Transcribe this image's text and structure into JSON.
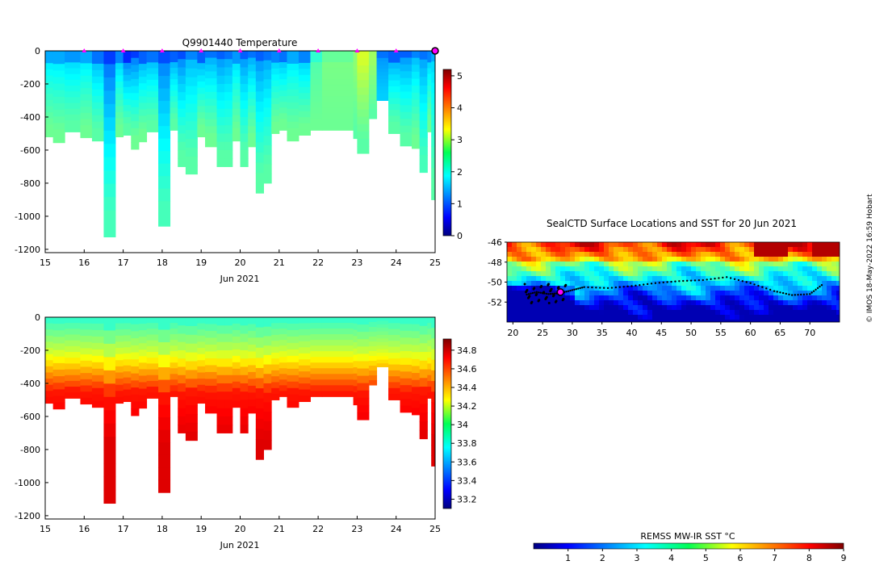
{
  "chart_data": [
    {
      "type": "heatmap",
      "id": "temperature",
      "title": "Q9901440  Temperature",
      "xlabel": "Jun 2021",
      "ylabel": "",
      "xlim": [
        15,
        25
      ],
      "ylim": [
        -1220,
        0
      ],
      "x_ticks": [
        "15",
        "16",
        "17",
        "18",
        "19",
        "20",
        "21",
        "22",
        "23",
        "24",
        "25"
      ],
      "y_ticks": [
        "0",
        "-200",
        "-400",
        "-600",
        "-800",
        "-1000",
        "-1200"
      ],
      "colorbar": {
        "min": 0,
        "max": 5.2,
        "ticks": [
          "0",
          "1",
          "2",
          "3",
          "4",
          "5"
        ],
        "colormap": "jet"
      },
      "surface_markers_day": [
        16,
        17,
        18,
        19,
        20,
        21,
        22,
        23,
        24
      ],
      "current_marker_day": 25,
      "profiles": [
        {
          "day": 15.0,
          "depth": 520,
          "tsurf": 1.6,
          "tdeep": 2.5
        },
        {
          "day": 15.2,
          "depth": 555,
          "tsurf": 1.6,
          "tdeep": 2.5
        },
        {
          "day": 15.5,
          "depth": 490,
          "tsurf": 1.5,
          "tdeep": 2.4
        },
        {
          "day": 15.9,
          "depth": 525,
          "tsurf": 1.6,
          "tdeep": 2.5
        },
        {
          "day": 16.2,
          "depth": 545,
          "tsurf": 1.3,
          "tdeep": 2.4
        },
        {
          "day": 16.5,
          "depth": 1125,
          "tsurf": 1.0,
          "tdeep": 2.3
        },
        {
          "day": 16.8,
          "depth": 520,
          "tsurf": 1.4,
          "tdeep": 2.5
        },
        {
          "day": 17.0,
          "depth": 510,
          "tsurf": 0.9,
          "tdeep": 2.4
        },
        {
          "day": 17.2,
          "depth": 595,
          "tsurf": 1.0,
          "tdeep": 2.5
        },
        {
          "day": 17.4,
          "depth": 550,
          "tsurf": 1.2,
          "tdeep": 2.5
        },
        {
          "day": 17.6,
          "depth": 490,
          "tsurf": 1.3,
          "tdeep": 2.4
        },
        {
          "day": 17.9,
          "depth": 1060,
          "tsurf": 1.1,
          "tdeep": 2.3
        },
        {
          "day": 18.2,
          "depth": 480,
          "tsurf": 1.2,
          "tdeep": 2.4
        },
        {
          "day": 18.4,
          "depth": 700,
          "tsurf": 1.1,
          "tdeep": 2.4
        },
        {
          "day": 18.6,
          "depth": 745,
          "tsurf": 1.4,
          "tdeep": 2.4
        },
        {
          "day": 18.9,
          "depth": 520,
          "tsurf": 1.2,
          "tdeep": 2.5
        },
        {
          "day": 19.1,
          "depth": 580,
          "tsurf": 1.3,
          "tdeep": 2.5
        },
        {
          "day": 19.4,
          "depth": 700,
          "tsurf": 1.2,
          "tdeep": 2.4
        },
        {
          "day": 19.6,
          "depth": 700,
          "tsurf": 1.3,
          "tdeep": 2.4
        },
        {
          "day": 19.8,
          "depth": 545,
          "tsurf": 1.5,
          "tdeep": 2.5
        },
        {
          "day": 20.0,
          "depth": 700,
          "tsurf": 1.2,
          "tdeep": 2.4
        },
        {
          "day": 20.2,
          "depth": 580,
          "tsurf": 1.3,
          "tdeep": 2.5
        },
        {
          "day": 20.4,
          "depth": 860,
          "tsurf": 1.2,
          "tdeep": 2.4
        },
        {
          "day": 20.6,
          "depth": 800,
          "tsurf": 1.3,
          "tdeep": 2.4
        },
        {
          "day": 20.8,
          "depth": 500,
          "tsurf": 1.4,
          "tdeep": 2.5
        },
        {
          "day": 21.0,
          "depth": 480,
          "tsurf": 1.3,
          "tdeep": 2.5
        },
        {
          "day": 21.2,
          "depth": 545,
          "tsurf": 1.6,
          "tdeep": 2.5
        },
        {
          "day": 21.5,
          "depth": 510,
          "tsurf": 1.4,
          "tdeep": 2.5
        },
        {
          "day": 21.8,
          "depth": 480,
          "tsurf": 2.3,
          "tdeep": 2.5
        },
        {
          "day": 22.1,
          "depth": 480,
          "tsurf": 2.6,
          "tdeep": 2.5
        },
        {
          "day": 22.9,
          "depth": 530,
          "tsurf": 2.8,
          "tdeep": 2.4
        },
        {
          "day": 23.0,
          "depth": 620,
          "tsurf": 3.2,
          "tdeep": 2.4
        },
        {
          "day": 23.3,
          "depth": 410,
          "tsurf": 2.9,
          "tdeep": 2.4
        },
        {
          "day": 23.5,
          "depth": 300,
          "tsurf": 1.3,
          "tdeep": 1.7
        },
        {
          "day": 23.8,
          "depth": 500,
          "tsurf": 1.2,
          "tdeep": 2.4
        },
        {
          "day": 24.1,
          "depth": 575,
          "tsurf": 1.2,
          "tdeep": 2.4
        },
        {
          "day": 24.4,
          "depth": 590,
          "tsurf": 1.4,
          "tdeep": 2.5
        },
        {
          "day": 24.6,
          "depth": 735,
          "tsurf": 1.3,
          "tdeep": 2.3
        },
        {
          "day": 24.8,
          "depth": 490,
          "tsurf": 1.4,
          "tdeep": 2.5
        },
        {
          "day": 24.9,
          "depth": 900,
          "tsurf": 1.6,
          "tdeep": 2.4
        },
        {
          "day": 25.0,
          "depth": 700,
          "tsurf": 1.8,
          "tdeep": 2.4
        }
      ]
    },
    {
      "type": "heatmap",
      "id": "salinity",
      "title": "",
      "xlabel": "Jun 2021",
      "ylabel": "",
      "xlim": [
        15,
        25
      ],
      "ylim": [
        -1220,
        0
      ],
      "x_ticks": [
        "15",
        "16",
        "17",
        "18",
        "19",
        "20",
        "21",
        "22",
        "23",
        "24",
        "25"
      ],
      "y_ticks": [
        "0",
        "-200",
        "-400",
        "-600",
        "-800",
        "-1000",
        "-1200"
      ],
      "colorbar": {
        "min": 33.1,
        "max": 34.92,
        "ticks": [
          "33.2",
          "33.4",
          "33.6",
          "33.8",
          "34",
          "34.2",
          "34.4",
          "34.6",
          "34.8"
        ],
        "colormap": "jet"
      },
      "profiles_note": "same profile columns as temperature; surface ~33.9, increasing to ~34.7 below 400 m"
    },
    {
      "type": "map",
      "id": "sst_map",
      "title": "SealCTD Surface Locations and SST for 20 Jun 2021",
      "x_ticks": [
        "20",
        "25",
        "30",
        "35",
        "40",
        "45",
        "50",
        "55",
        "60",
        "65",
        "70"
      ],
      "y_ticks": [
        "-46",
        "-48",
        "-50",
        "-52"
      ],
      "xlim": [
        19,
        75
      ],
      "ylim": [
        -54,
        -46
      ],
      "colorbar": {
        "label": "REMSS MW-IR SST °C",
        "min": 0,
        "max": 9,
        "ticks": [
          "1",
          "2",
          "3",
          "4",
          "5",
          "6",
          "7",
          "8",
          "9"
        ]
      },
      "track": [
        [
          72,
          -50.3
        ],
        [
          70,
          -51.2
        ],
        [
          67,
          -51.3
        ],
        [
          64,
          -50.9
        ],
        [
          60,
          -50.1
        ],
        [
          56,
          -49.5
        ],
        [
          52,
          -49.8
        ],
        [
          48,
          -49.9
        ],
        [
          44,
          -50.1
        ],
        [
          40,
          -50.4
        ],
        [
          36,
          -50.6
        ],
        [
          32,
          -50.5
        ],
        [
          30,
          -50.8
        ],
        [
          28,
          -51.1
        ],
        [
          26,
          -51.2
        ],
        [
          24,
          -51.0
        ],
        [
          22,
          -51.3
        ]
      ],
      "current_location": [
        28,
        -51.0
      ]
    }
  ],
  "credit": "© IMOS 18-May-2022 16:59 Hobart"
}
